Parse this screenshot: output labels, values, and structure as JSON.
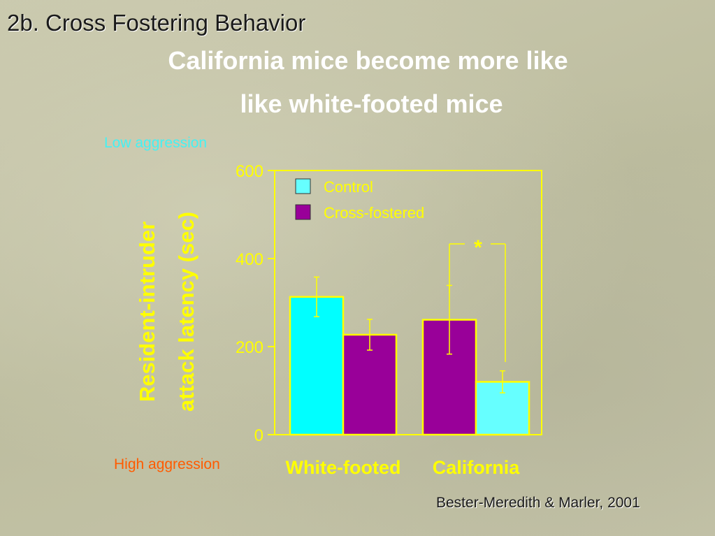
{
  "slide": {
    "section_title": "2b. Cross Fostering Behavior",
    "headline_line1": "California mice become more like",
    "headline_line2": "like white-footed mice",
    "annotation_low": "Low aggression",
    "annotation_high": "High aggression",
    "citation": "Bester-Meredith & Marler, 2001"
  },
  "colors": {
    "axis": "#ffff00",
    "control": "#00ffff",
    "cross_fostered": "#990099",
    "california_control": "#66ffff"
  },
  "chart_data": {
    "type": "bar",
    "ylabel_line1": "Resident-intruder",
    "ylabel_line2": "attack latency (sec)",
    "ylim": [
      0,
      600
    ],
    "yticks": [
      0,
      200,
      400,
      600
    ],
    "categories": [
      "White-footed",
      "California"
    ],
    "series": [
      {
        "name": "Control",
        "values": [
          313,
          120
        ],
        "errors": [
          45,
          25
        ]
      },
      {
        "name": "Cross-fostered",
        "values": [
          227,
          261
        ],
        "errors": [
          35,
          78
        ]
      }
    ],
    "legend_position": "top-left",
    "significance": {
      "category": "California",
      "label": "*"
    }
  }
}
